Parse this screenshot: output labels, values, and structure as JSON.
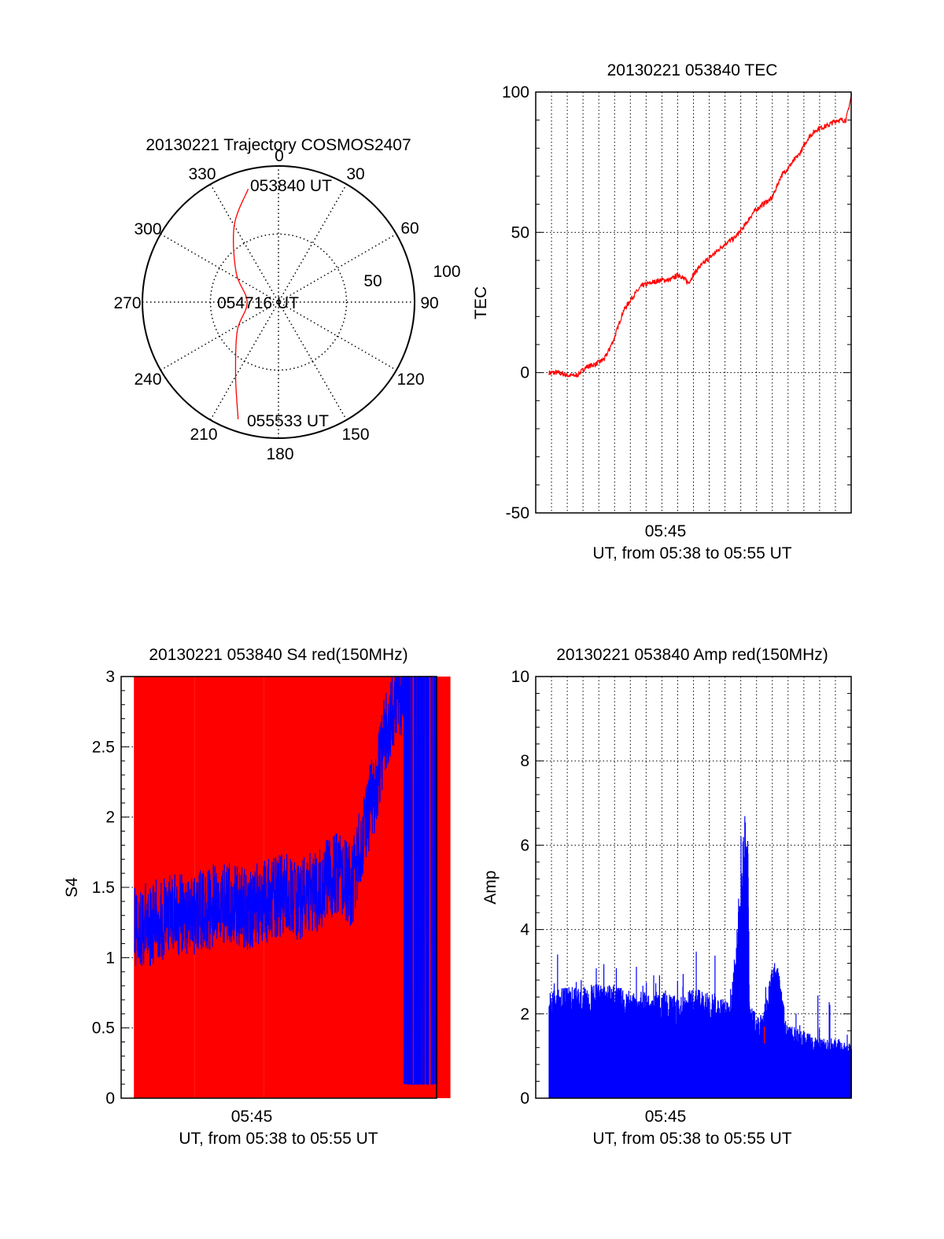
{
  "colors": {
    "red": "#ff0000",
    "blue": "#0000ff",
    "axis": "#000000"
  },
  "chart_data": [
    {
      "type": "polar",
      "title": "20130221 Trajectory COSMOS2407",
      "azimuth_labels": [
        "0",
        "30",
        "60",
        "90",
        "120",
        "150",
        "180",
        "210",
        "240",
        "270",
        "300",
        "330"
      ],
      "radial_labels": [
        "50",
        "100"
      ],
      "elevation_range": [
        0,
        100
      ],
      "series": [
        {
          "color": "red",
          "points": [
            {
              "az": 345,
              "el": 14
            },
            {
              "az": 330,
              "el": 35
            },
            {
              "az": 305,
              "el": 62
            },
            {
              "az": 270,
              "el": 77
            },
            {
              "az": 235,
              "el": 63
            },
            {
              "az": 210,
              "el": 37
            },
            {
              "az": 199,
              "el": 9
            }
          ]
        }
      ],
      "annotations": [
        {
          "text": "053840 UT",
          "az": 345,
          "el": 14
        },
        {
          "text": "054716 UT",
          "az": 270,
          "el": 0
        },
        {
          "text": "055533 UT",
          "az": 199,
          "el": 9
        }
      ]
    },
    {
      "type": "line",
      "title": "20130221 053840 TEC",
      "xlabel": "UT, from 05:38 to 05:55 UT",
      "ylabel": "TEC",
      "xtick_labels": [
        "05:45"
      ],
      "ytick_labels": [
        "-50",
        "0",
        "50",
        "100"
      ],
      "ylim": [
        -50,
        100
      ],
      "grid": true,
      "series": [
        {
          "color": "red",
          "x": [
            0.0,
            0.5,
            1.0,
            1.5,
            2.0,
            2.5,
            3.0,
            3.5,
            4.0,
            4.5,
            5.0,
            5.5,
            6.0,
            6.5,
            7.0,
            7.5,
            8.0,
            8.5,
            9.0,
            9.5,
            10.0,
            10.5,
            11.0,
            11.5,
            12.0,
            12.5,
            13.0,
            13.5,
            14.0,
            14.5,
            15.0,
            15.5,
            16.0,
            16.3
          ],
          "y": [
            0,
            0,
            -1,
            -1,
            2,
            3,
            5,
            12,
            22,
            27,
            31,
            32,
            33,
            33,
            35,
            32,
            37,
            40,
            43,
            46,
            48,
            52,
            57,
            60,
            62,
            70,
            74,
            78,
            84,
            87,
            88,
            90,
            90,
            99
          ]
        }
      ]
    },
    {
      "type": "bar",
      "title": "20130221 053840 S4 red(150MHz)",
      "xlabel": "UT, from 05:38 to 05:55 UT",
      "ylabel": "S4",
      "xtick_labels": [
        "05:45"
      ],
      "ytick_labels": [
        "0",
        "0.5",
        "1",
        "1.5",
        "2",
        "2.5",
        "3"
      ],
      "ylim": [
        0,
        3
      ],
      "grid": true,
      "series": [
        {
          "color": "red",
          "description": "dense vertical spikes reaching the top of the axis (values clipped at 3) across most of the interval",
          "x": [
            0.5,
            13.7
          ],
          "y": [
            3,
            3
          ]
        },
        {
          "color": "blue",
          "x": [
            0.0,
            1.0,
            2.0,
            3.0,
            4.0,
            5.0,
            6.0,
            7.0,
            8.0,
            9.0,
            10.0,
            11.0,
            11.7,
            12.5,
            13.0,
            13.5,
            14.0,
            14.5,
            15.0,
            16.3
          ],
          "y": [
            1.2,
            1.25,
            1.3,
            1.3,
            1.35,
            1.4,
            1.35,
            1.4,
            1.45,
            1.4,
            1.5,
            1.6,
            1.5,
            2.0,
            2.2,
            2.6,
            2.8,
            2.9,
            3.0,
            3.0
          ]
        }
      ]
    },
    {
      "type": "bar",
      "title": "20130221 053840 Amp red(150MHz)",
      "xlabel": "UT, from 05:38 to 05:55 UT",
      "ylabel": "Amp",
      "xtick_labels": [
        "05:45"
      ],
      "ytick_labels": [
        "0",
        "2",
        "4",
        "6",
        "8",
        "10"
      ],
      "ylim": [
        0,
        10
      ],
      "grid": true,
      "series": [
        {
          "color": "blue",
          "x": [
            0.0,
            1.0,
            2.0,
            3.0,
            4.0,
            5.0,
            6.0,
            7.0,
            8.0,
            9.0,
            9.8,
            10.6,
            10.8,
            11.0,
            11.5,
            12.2,
            12.8,
            13.5,
            14.0,
            14.5,
            15.0,
            15.5,
            16.0,
            16.3
          ],
          "y": [
            2.3,
            2.4,
            2.4,
            2.5,
            2.4,
            2.3,
            2.3,
            2.2,
            2.4,
            2.2,
            2.1,
            6.0,
            2.0,
            1.9,
            1.8,
            3.2,
            1.6,
            1.5,
            1.4,
            1.3,
            1.3,
            1.3,
            1.2,
            1.2
          ]
        }
      ]
    }
  ]
}
